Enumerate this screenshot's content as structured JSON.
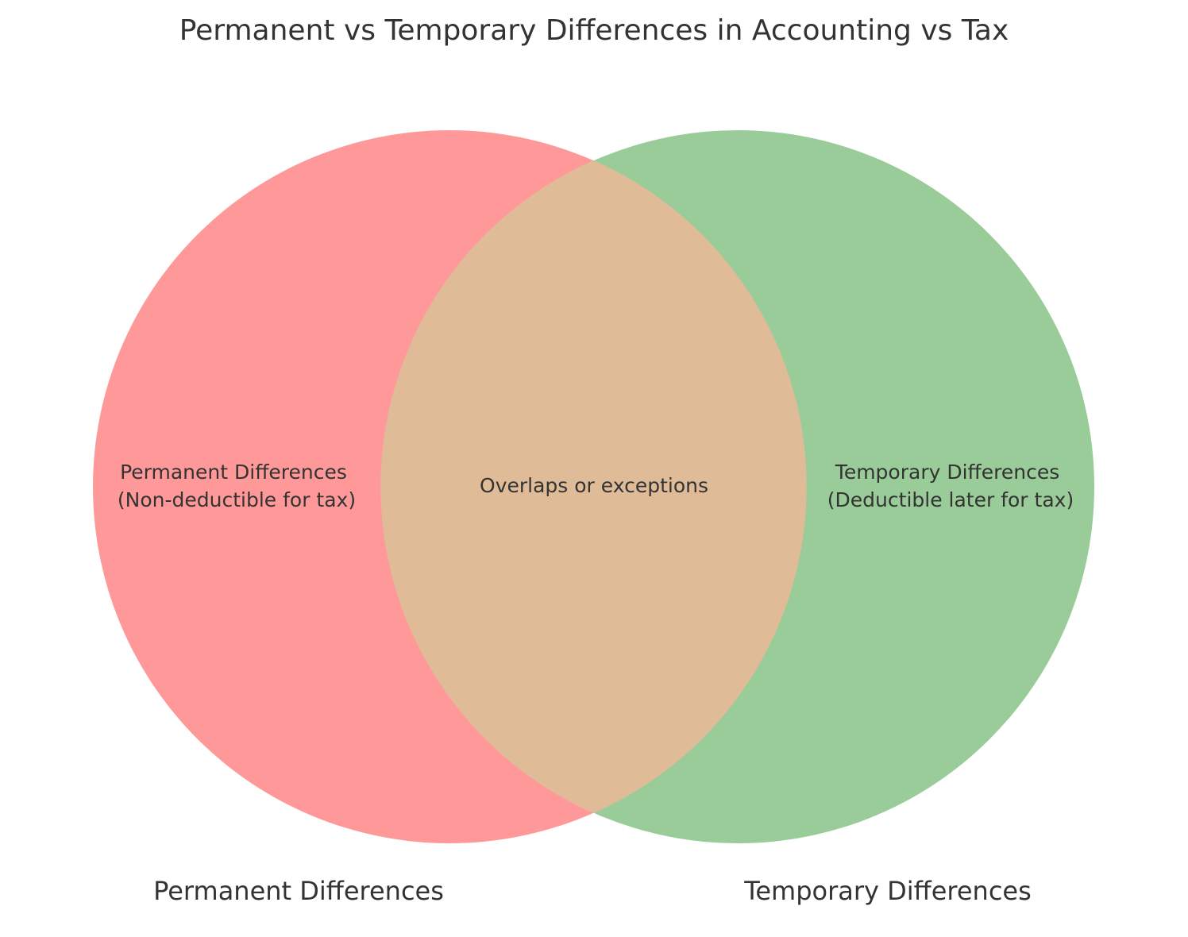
{
  "title": "Permanent vs Temporary Differences in Accounting vs Tax",
  "sets": [
    {
      "name": "Permanent Differences",
      "color": "#FF9999"
    },
    {
      "name": "Temporary Differences",
      "color": "#99CC99"
    }
  ],
  "overlap_color": "#E0BB97",
  "regions": {
    "left": [
      "Permanent Differences",
      "(Non-deductible for tax)"
    ],
    "center": [
      "Overlaps or exceptions"
    ],
    "right": [
      "Temporary Differences",
      "(Deductible later for tax)"
    ]
  }
}
